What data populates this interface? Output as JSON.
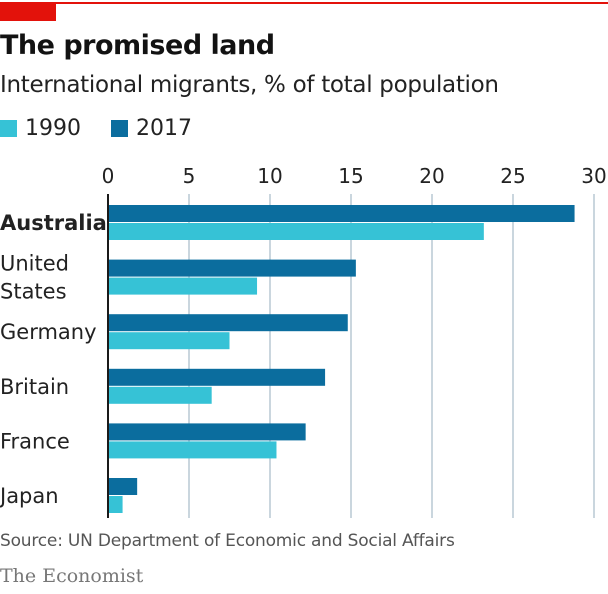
{
  "header": {
    "title": "The promised land",
    "subtitle": "International migrants, % of total population"
  },
  "legend": [
    {
      "label": "1990",
      "color": "#36c2d6"
    },
    {
      "label": "2017",
      "color": "#0b6d9e"
    }
  ],
  "footer": {
    "source": "Source: UN Department of Economic and Social Affairs",
    "brand": "The Economist"
  },
  "colors": {
    "accent": "#e3120b",
    "series_1990": "#36c2d6",
    "series_2017": "#0b6d9e",
    "grid": "#b8c8d4",
    "axis": "#1a1a1a"
  },
  "chart_data": {
    "type": "bar",
    "orientation": "horizontal",
    "title": "The promised land",
    "subtitle": "International migrants, % of total population",
    "xlabel": "",
    "ylabel": "",
    "xlim": [
      0,
      30
    ],
    "xticks": [
      0,
      5,
      10,
      15,
      20,
      25,
      30
    ],
    "grid": true,
    "legend_position": "top-left",
    "categories": [
      {
        "label": [
          "Australia"
        ],
        "bold": true
      },
      {
        "label": [
          "United",
          "States"
        ],
        "bold": false
      },
      {
        "label": [
          "Germany"
        ],
        "bold": false
      },
      {
        "label": [
          "Britain"
        ],
        "bold": false
      },
      {
        "label": [
          "France"
        ],
        "bold": false
      },
      {
        "label": [
          "Japan"
        ],
        "bold": false
      }
    ],
    "series": [
      {
        "name": "2017",
        "values": [
          28.8,
          15.3,
          14.8,
          13.4,
          12.2,
          1.8
        ]
      },
      {
        "name": "1990",
        "values": [
          23.2,
          9.2,
          7.5,
          6.4,
          10.4,
          0.9
        ]
      }
    ],
    "source": "UN Department of Economic and Social Affairs"
  }
}
